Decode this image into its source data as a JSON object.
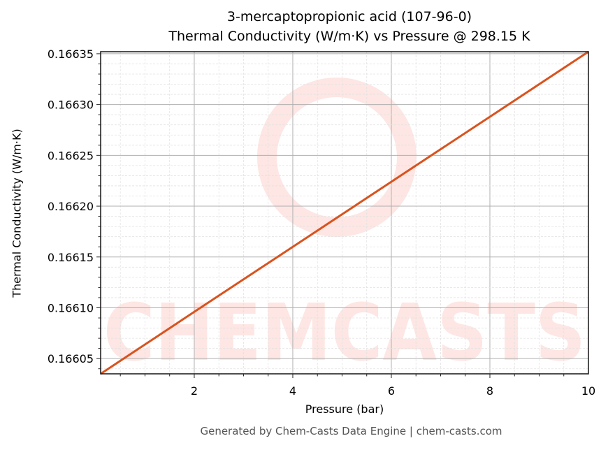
{
  "chart_data": {
    "type": "line",
    "title": "3-mercaptopropionic acid (107-96-0)",
    "subtitle": "Thermal Conductivity (W/m·K) vs Pressure @ 298.15 K",
    "xlabel": "Pressure (bar)",
    "ylabel": "Thermal Conductivity (W/m·K)",
    "xlim": [
      0.1,
      10
    ],
    "ylim": [
      0.166035,
      0.166352
    ],
    "x_ticks": [
      "2",
      "4",
      "6",
      "8",
      "10"
    ],
    "y_ticks": [
      "0.16605",
      "0.16610",
      "0.16615",
      "0.16620",
      "0.16625",
      "0.16630",
      "0.16635"
    ],
    "grid": true,
    "legend": null,
    "series": [
      {
        "name": "Thermal Conductivity",
        "color": "#d9531e",
        "x": [
          0.1,
          2,
          4,
          6,
          8,
          10
        ],
        "y": [
          0.166035,
          0.166096,
          0.16616,
          0.166224,
          0.166288,
          0.166352
        ]
      }
    ]
  },
  "header": {
    "title_line1": "3-mercaptopropionic acid (107-96-0)",
    "title_line2": "Thermal Conductivity (W/m·K) vs Pressure @ 298.15 K"
  },
  "axes": {
    "xlabel": "Pressure (bar)",
    "ylabel": "Thermal Conductivity (W/m·K)"
  },
  "watermark": {
    "text": "CHEMCASTS",
    "color": "#fde3e0"
  },
  "footer": {
    "text": "Generated by Chem-Casts Data Engine | chem-casts.com"
  }
}
